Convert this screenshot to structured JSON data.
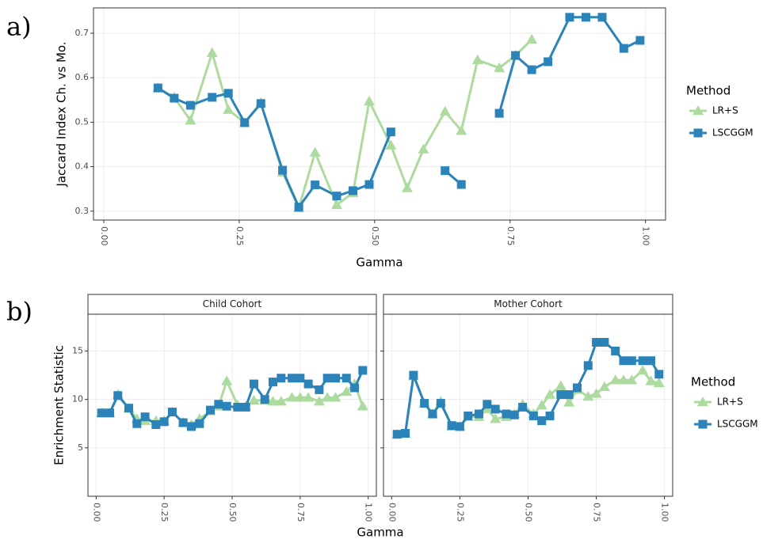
{
  "chart_data": [
    {
      "type": "line",
      "panel_label": "a)",
      "xlabel": "Gamma",
      "ylabel": "Jaccard Index Ch. vs Mo.",
      "legend_title": "Method",
      "grid": true,
      "xlim": [
        -0.019,
        1.037
      ],
      "ylim": [
        0.28,
        0.757
      ],
      "xticks": [
        {
          "value": 0,
          "label": "0.00"
        },
        {
          "value": 0.25,
          "label": "0.25"
        },
        {
          "value": 0.5,
          "label": "0.50"
        },
        {
          "value": 0.75,
          "label": "0.75"
        },
        {
          "value": 1,
          "label": "1.00"
        }
      ],
      "yticks": [
        0.3,
        0.4,
        0.5,
        0.6,
        0.7
      ],
      "x": [
        0.1,
        0.13,
        0.16,
        0.2,
        0.23,
        0.26,
        0.29,
        0.33,
        0.36,
        0.39,
        0.43,
        0.46,
        0.49,
        0.53,
        0.56,
        0.59,
        0.63,
        0.66,
        0.69,
        0.73,
        0.76,
        0.79,
        0.82,
        0.86,
        0.89,
        0.92,
        0.96,
        0.99
      ],
      "series": [
        {
          "name": "LR+S",
          "color": "#addb9f",
          "marker": "triangle",
          "values": [
            0.577,
            0.556,
            0.504,
            0.656,
            0.528,
            0.499,
            0.544,
            0.387,
            0.307,
            0.432,
            0.314,
            0.341,
            0.547,
            0.448,
            0.352,
            0.439,
            0.524,
            0.481,
            0.64,
            0.622,
            0.65,
            0.686,
            null,
            null,
            null,
            null,
            null,
            null
          ]
        },
        {
          "name": "LSCGGM",
          "color": "#2b83ba",
          "marker": "square",
          "values": [
            0.577,
            0.554,
            0.538,
            0.556,
            0.565,
            0.499,
            0.542,
            0.392,
            0.309,
            0.359,
            0.334,
            0.346,
            0.36,
            0.478,
            null,
            null,
            0.391,
            0.36,
            null,
            0.52,
            0.65,
            0.618,
            0.636,
            0.736,
            0.736,
            0.736,
            0.666,
            0.684
          ]
        }
      ]
    },
    {
      "type": "line",
      "panel_label": "b)",
      "title": "Child Cohort",
      "xlabel": "Gamma",
      "ylabel": "Enrichment Statistic",
      "grid": true,
      "xlim": [
        -0.03,
        1.03
      ],
      "ylim": [
        0,
        18.8
      ],
      "xticks": [
        {
          "value": 0,
          "label": "0.00"
        },
        {
          "value": 0.25,
          "label": "0.25"
        },
        {
          "value": 0.5,
          "label": "0.50"
        },
        {
          "value": 0.75,
          "label": "0.75"
        },
        {
          "value": 1,
          "label": "1.00"
        }
      ],
      "yticks": [
        5,
        10,
        15
      ],
      "x": [
        0.02,
        0.05,
        0.08,
        0.12,
        0.15,
        0.18,
        0.22,
        0.25,
        0.28,
        0.32,
        0.35,
        0.38,
        0.42,
        0.45,
        0.48,
        0.52,
        0.55,
        0.58,
        0.62,
        0.65,
        0.68,
        0.72,
        0.75,
        0.78,
        0.82,
        0.85,
        0.88,
        0.92,
        0.95,
        0.98
      ],
      "series": [
        {
          "color": "#addb9f",
          "marker": "triangle",
          "values": [
            8.6,
            8.6,
            10.5,
            9.1,
            8.0,
            7.8,
            7.8,
            7.8,
            8.7,
            7.6,
            7.4,
            8.0,
            8.8,
            9.3,
            11.9,
            9.4,
            9.3,
            9.9,
            9.9,
            9.8,
            9.8,
            10.2,
            10.2,
            10.2,
            9.8,
            10.2,
            10.2,
            10.8,
            11.6,
            9.3
          ]
        },
        {
          "color": "#2b83ba",
          "marker": "square",
          "values": [
            8.6,
            8.6,
            10.4,
            9.1,
            7.5,
            8.2,
            7.4,
            7.7,
            8.7,
            7.6,
            7.2,
            7.5,
            8.9,
            9.5,
            9.3,
            9.2,
            9.2,
            11.6,
            10.0,
            11.8,
            12.2,
            12.2,
            12.2,
            11.6,
            11.0,
            12.2,
            12.2,
            12.2,
            11.2,
            13.0
          ]
        }
      ]
    },
    {
      "type": "line",
      "title": "Mother Cohort",
      "legend_title": "Method",
      "grid": true,
      "ytick_labels": false,
      "xlim": [
        -0.03,
        1.03
      ],
      "ylim": [
        0,
        18.8
      ],
      "xticks": [
        {
          "value": 0,
          "label": "0.00"
        },
        {
          "value": 0.25,
          "label": "0.25"
        },
        {
          "value": 0.5,
          "label": "0.50"
        },
        {
          "value": 0.75,
          "label": "0.75"
        },
        {
          "value": 1,
          "label": "1.00"
        }
      ],
      "yticks": [
        5,
        10,
        15
      ],
      "x": [
        0.02,
        0.05,
        0.08,
        0.12,
        0.15,
        0.18,
        0.22,
        0.25,
        0.28,
        0.32,
        0.35,
        0.38,
        0.42,
        0.45,
        0.48,
        0.52,
        0.55,
        0.58,
        0.62,
        0.65,
        0.68,
        0.72,
        0.75,
        0.78,
        0.82,
        0.85,
        0.88,
        0.92,
        0.95,
        0.98
      ],
      "series": [
        {
          "name": "LR+S",
          "color": "#addb9f",
          "marker": "triangle",
          "values": [
            6.4,
            6.5,
            12.4,
            9.6,
            8.5,
            9.8,
            7.2,
            7.2,
            8.2,
            8.2,
            9.0,
            8.0,
            8.2,
            8.5,
            9.5,
            8.5,
            9.4,
            10.5,
            11.4,
            9.7,
            11.0,
            10.3,
            10.6,
            11.3,
            12.0,
            12.0,
            12.0,
            13.0,
            11.9,
            11.7
          ]
        },
        {
          "name": "LSCGGM",
          "color": "#2b83ba",
          "marker": "square",
          "values": [
            6.4,
            6.5,
            12.5,
            9.6,
            8.5,
            9.6,
            7.3,
            7.2,
            8.3,
            8.5,
            9.5,
            9.0,
            8.5,
            8.4,
            9.2,
            8.3,
            7.8,
            8.3,
            10.5,
            10.5,
            11.2,
            13.5,
            15.9,
            15.9,
            15.0,
            14.0,
            14.0,
            14.0,
            14.0,
            12.6
          ]
        }
      ]
    }
  ]
}
